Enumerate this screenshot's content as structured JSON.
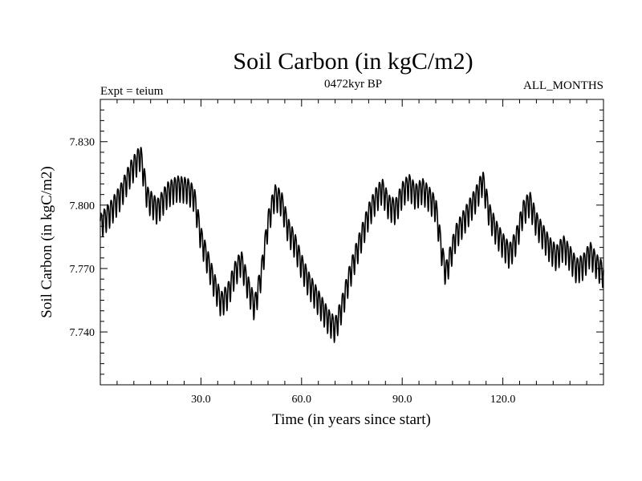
{
  "chart_data": {
    "type": "line",
    "title": "Soil Carbon (in kgC/m2)",
    "subtitle": "0472kyr BP",
    "left_label": "Expt = teium",
    "right_label": "ALL_MONTHS",
    "xlabel": "Time (in years since start)",
    "ylabel": "Soil Carbon (in kgC/m2)",
    "xlim": [
      0,
      150
    ],
    "ylim": [
      7.715,
      7.85
    ],
    "xticks": [
      30,
      60,
      90,
      120
    ],
    "xtick_labels": [
      "30.0",
      "60.0",
      "90.0",
      "120.0"
    ],
    "yticks": [
      7.74,
      7.77,
      7.8,
      7.83
    ],
    "ytick_labels": [
      "7.740",
      "7.770",
      "7.800",
      "7.830"
    ],
    "grid": false,
    "seasonal_cycle_amplitude": 0.006,
    "series": [
      {
        "name": "",
        "color": "#000000",
        "x": [
          0,
          3,
          6,
          9,
          12,
          14,
          17,
          20,
          23,
          26,
          28,
          30,
          32,
          34,
          36,
          38,
          40,
          42,
          44,
          46,
          48,
          50,
          52,
          54,
          56,
          58,
          60,
          62,
          64,
          66,
          68,
          70,
          72,
          74,
          76,
          78,
          80,
          82,
          84,
          86,
          88,
          90,
          92,
          94,
          96,
          98,
          100,
          102,
          103,
          104,
          106,
          108,
          110,
          112,
          114,
          116,
          118,
          120,
          122,
          124,
          126,
          128,
          130,
          132,
          134,
          136,
          138,
          140,
          142,
          144,
          146,
          148,
          150
        ],
        "y": [
          7.791,
          7.797,
          7.805,
          7.816,
          7.824,
          7.804,
          7.798,
          7.806,
          7.809,
          7.808,
          7.804,
          7.785,
          7.774,
          7.763,
          7.754,
          7.758,
          7.768,
          7.774,
          7.762,
          7.752,
          7.768,
          7.792,
          7.805,
          7.802,
          7.789,
          7.782,
          7.772,
          7.764,
          7.758,
          7.752,
          7.746,
          7.742,
          7.752,
          7.765,
          7.776,
          7.786,
          7.796,
          7.803,
          7.808,
          7.8,
          7.798,
          7.806,
          7.81,
          7.805,
          7.808,
          7.804,
          7.799,
          7.776,
          7.768,
          7.774,
          7.786,
          7.792,
          7.798,
          7.804,
          7.812,
          7.796,
          7.788,
          7.782,
          7.777,
          7.784,
          7.797,
          7.802,
          7.792,
          7.786,
          7.78,
          7.776,
          7.781,
          7.776,
          7.77,
          7.772,
          7.778,
          7.772,
          7.768
        ]
      }
    ]
  }
}
